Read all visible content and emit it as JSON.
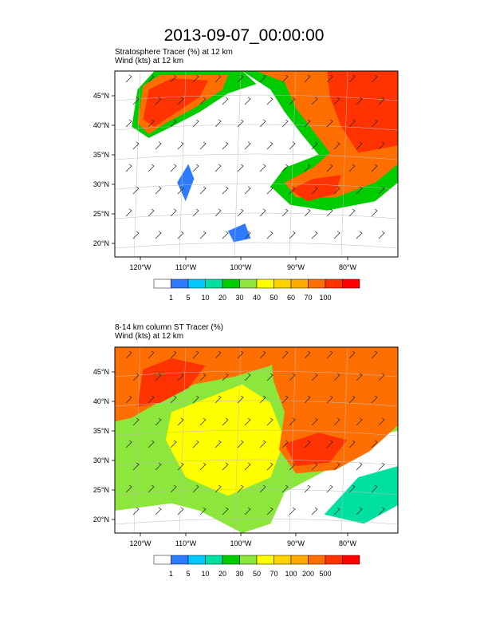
{
  "title": "2013-09-07_00:00:00",
  "chart_data": [
    {
      "type": "heatmap",
      "subtitle_line1": "Stratosphere Tracer   (%)     at   12 km",
      "subtitle_line2": "Wind   (kts)     at   12 km",
      "x_tick_labels": [
        "120°W",
        "110°W",
        "100°W",
        "90°W",
        "80°W"
      ],
      "y_tick_labels": [
        "45°N",
        "40°N",
        "35°N",
        "30°N",
        "25°N",
        "20°N"
      ],
      "colorbar_levels": [
        "1",
        "5",
        "10",
        "20",
        "30",
        "40",
        "50",
        "60",
        "70",
        "100"
      ],
      "colorbar_colors": [
        "#ffffff",
        "#2f7bff",
        "#00c8ff",
        "#00e0a0",
        "#00cc00",
        "#8ce63c",
        "#ffff00",
        "#ffd200",
        "#ffaa00",
        "#ff6e00",
        "#ff3200",
        "#ff0000"
      ]
    },
    {
      "type": "heatmap",
      "subtitle_line1": "8-14 km column ST Tracer   (%)",
      "subtitle_line2": "Wind   (kts)     at   12 km",
      "x_tick_labels": [
        "120°W",
        "110°W",
        "100°W",
        "90°W",
        "80°W"
      ],
      "y_tick_labels": [
        "45°N",
        "40°N",
        "35°N",
        "30°N",
        "25°N",
        "20°N"
      ],
      "colorbar_levels": [
        "1",
        "5",
        "10",
        "20",
        "30",
        "50",
        "70",
        "100",
        "200",
        "500"
      ],
      "colorbar_colors": [
        "#ffffff",
        "#2f7bff",
        "#00c8ff",
        "#00e0a0",
        "#00cc00",
        "#8ce63c",
        "#ffff00",
        "#ffd200",
        "#ffaa00",
        "#ff6e00",
        "#ff3200",
        "#ff0000"
      ]
    }
  ]
}
